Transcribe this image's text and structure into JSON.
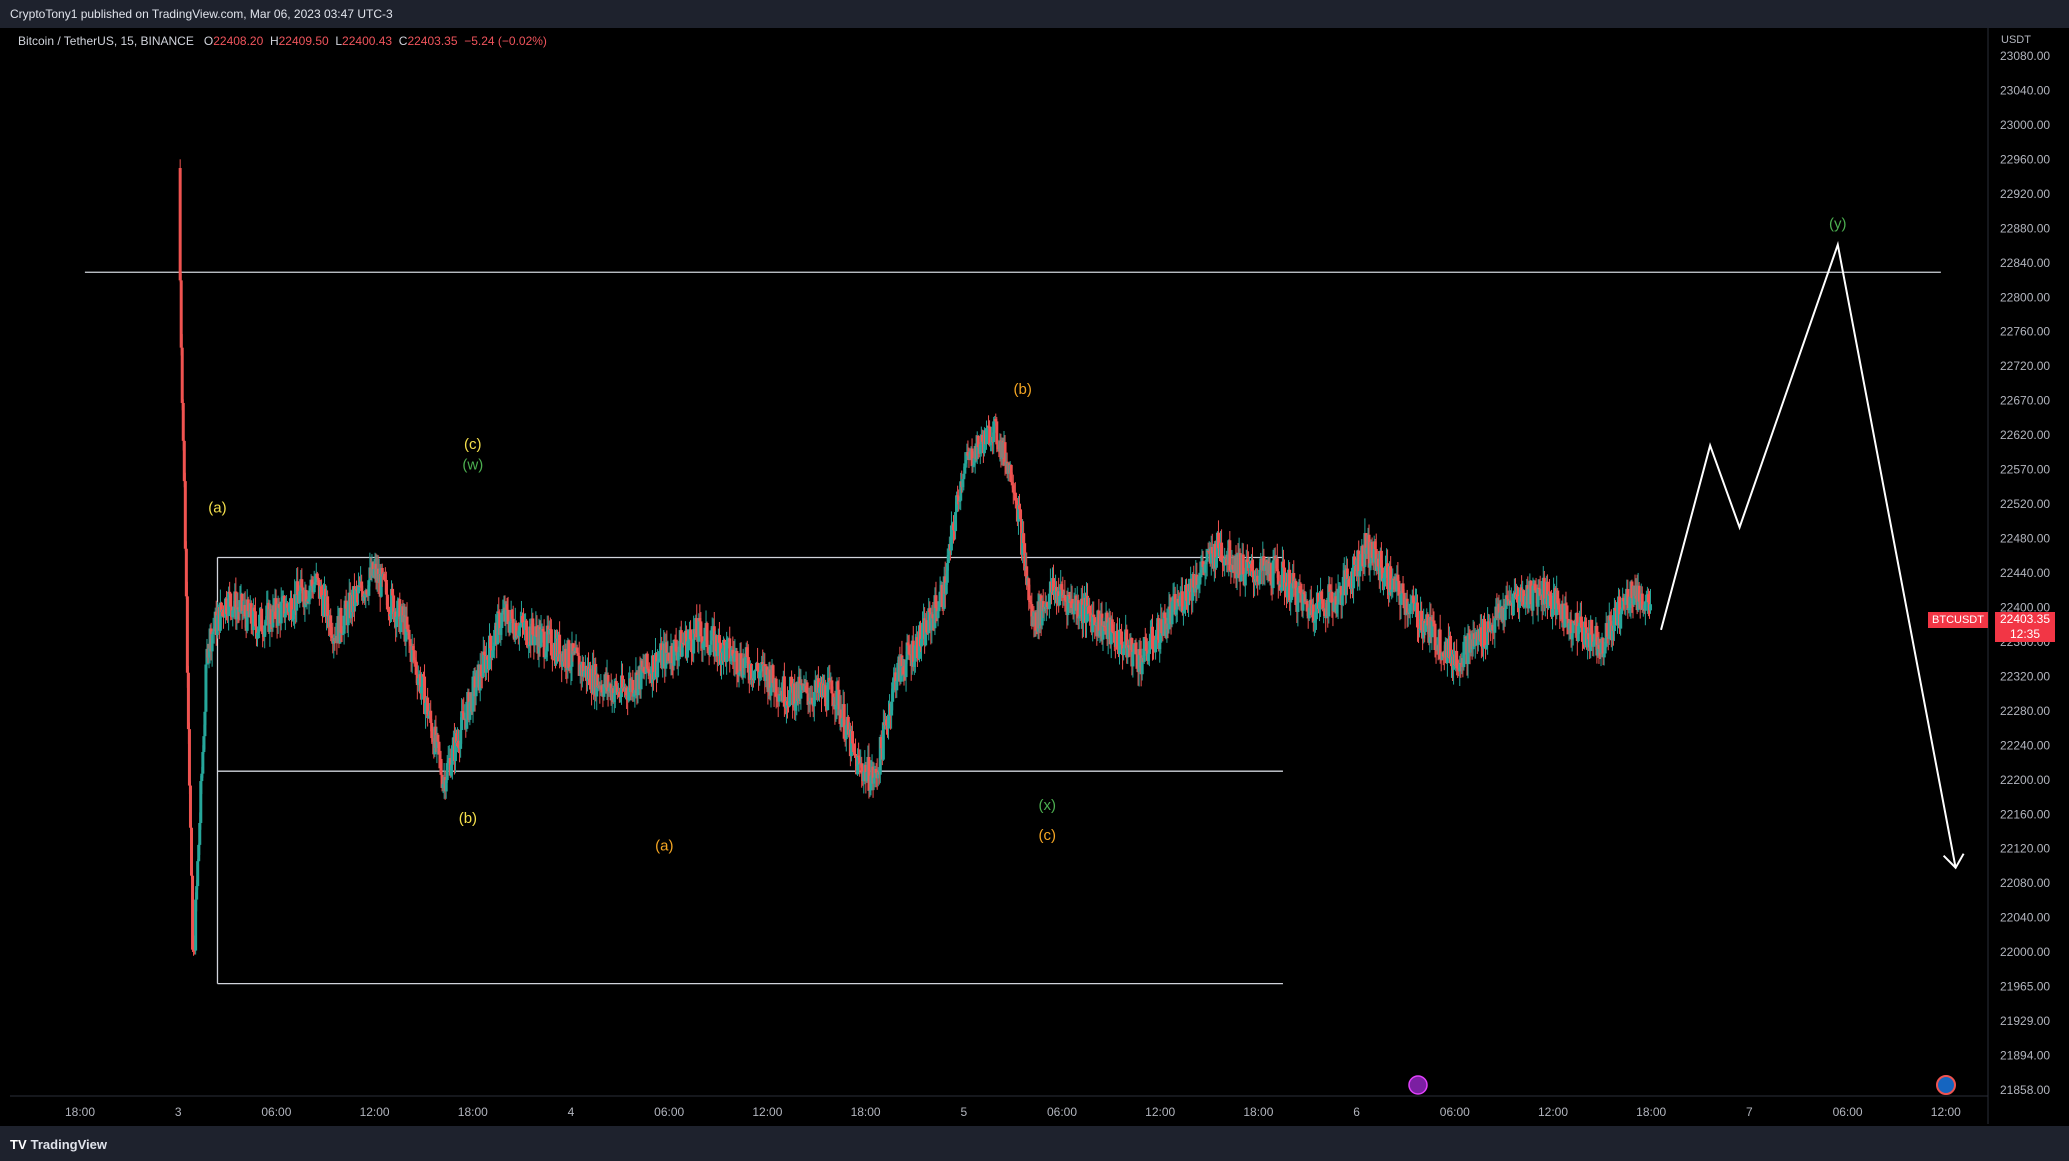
{
  "header": {
    "publisher_line": "CryptoTony1 published on TradingView.com, Mar 06, 2023 03:47 UTC-3"
  },
  "symbol": {
    "name": "Bitcoin / TetherUS, 15, BINANCE",
    "o_label": "O",
    "o": "22408.20",
    "h_label": "H",
    "h": "22409.50",
    "l_label": "L",
    "l": "22400.43",
    "c_label": "C",
    "c": "22403.35",
    "change": "−5.24 (−0.02%)"
  },
  "badges": {
    "ticker": "BTCUSDT",
    "price": "22403.35",
    "countdown": "12:35",
    "unit": "USDT"
  },
  "footer": {
    "brand": "TradingView",
    "brand_icon": "tradingview-logo-icon"
  },
  "colors": {
    "up": "#26a69a",
    "down": "#ef5350",
    "level": "#d1d4dc",
    "projection": "#ffffff",
    "wave_yellow": "#f5e04c",
    "wave_orange": "#f5a623",
    "wave_green": "#4caf50"
  },
  "chart_data": {
    "type": "candlestick",
    "symbol": "BTCUSDT",
    "interval": "15",
    "y_axis": {
      "ticks": [
        "23080.00",
        "23040.00",
        "23000.00",
        "22960.00",
        "22920.00",
        "22880.00",
        "22840.00",
        "22800.00",
        "22760.00",
        "22720.00",
        "22670.00",
        "22620.00",
        "22570.00",
        "22520.00",
        "22480.00",
        "22440.00",
        "22400.00",
        "22360.00",
        "22320.00",
        "22280.00",
        "22240.00",
        "22200.00",
        "22160.00",
        "22120.00",
        "22080.00",
        "22040.00",
        "22000.00",
        "21965.00",
        "21929.00",
        "21894.00",
        "21858.00"
      ]
    },
    "x_axis": {
      "ticks": [
        "18:00",
        "3",
        "06:00",
        "12:00",
        "18:00",
        "4",
        "06:00",
        "12:00",
        "18:00",
        "5",
        "06:00",
        "12:00",
        "18:00",
        "6",
        "06:00",
        "12:00",
        "18:00",
        "7",
        "06:00",
        "12:00"
      ]
    },
    "levels": [
      22829,
      22458,
      22210,
      21968
    ],
    "price_path": [
      [
        2,
        22950
      ],
      [
        2.15,
        21975
      ],
      [
        2.3,
        22360
      ],
      [
        2.5,
        22410
      ],
      [
        2.8,
        22380
      ],
      [
        3.1,
        22400
      ],
      [
        3.4,
        22430
      ],
      [
        3.6,
        22370
      ],
      [
        3.8,
        22410
      ],
      [
        4.0,
        22440
      ],
      [
        4.3,
        22380
      ],
      [
        4.5,
        22300
      ],
      [
        4.7,
        22200
      ],
      [
        5.0,
        22300
      ],
      [
        5.3,
        22390
      ],
      [
        5.6,
        22370
      ],
      [
        5.9,
        22350
      ],
      [
        6.2,
        22320
      ],
      [
        6.5,
        22300
      ],
      [
        6.9,
        22340
      ],
      [
        7.3,
        22370
      ],
      [
        7.7,
        22340
      ],
      [
        8.0,
        22320
      ],
      [
        8.2,
        22300
      ],
      [
        8.45,
        22300
      ],
      [
        8.7,
        22300
      ],
      [
        8.9,
        22220
      ],
      [
        9.1,
        22200
      ],
      [
        9.3,
        22320
      ],
      [
        9.6,
        22370
      ],
      [
        9.8,
        22420
      ],
      [
        10.0,
        22575
      ],
      [
        10.3,
        22630
      ],
      [
        10.5,
        22560
      ],
      [
        10.7,
        22380
      ],
      [
        10.9,
        22420
      ],
      [
        11.2,
        22400
      ],
      [
        11.5,
        22370
      ],
      [
        11.8,
        22340
      ],
      [
        12.1,
        22390
      ],
      [
        12.4,
        22440
      ],
      [
        12.6,
        22470
      ],
      [
        12.9,
        22440
      ],
      [
        13.2,
        22440
      ],
      [
        13.5,
        22400
      ],
      [
        13.8,
        22410
      ],
      [
        14.1,
        22470
      ],
      [
        14.4,
        22420
      ],
      [
        14.7,
        22380
      ],
      [
        15.0,
        22340
      ],
      [
        15.3,
        22370
      ],
      [
        15.6,
        22410
      ],
      [
        15.9,
        22420
      ],
      [
        16.2,
        22380
      ],
      [
        16.5,
        22360
      ],
      [
        16.8,
        22420
      ],
      [
        17.0,
        22400
      ]
    ],
    "projection": [
      [
        17.1,
        22374
      ],
      [
        17.6,
        22605
      ],
      [
        17.9,
        22493
      ],
      [
        18.9,
        22861
      ],
      [
        20.1,
        22098
      ]
    ],
    "wave_labels": [
      {
        "text": "(a)",
        "x": 2.4,
        "price": 22510,
        "color": "wave_yellow"
      },
      {
        "text": "(c)",
        "x": 5.0,
        "price": 22600,
        "color": "wave_yellow"
      },
      {
        "text": "(w)",
        "x": 5.0,
        "price": 22570,
        "color": "wave_green"
      },
      {
        "text": "(b)",
        "x": 4.95,
        "price": 22150,
        "color": "wave_yellow"
      },
      {
        "text": "(a)",
        "x": 6.95,
        "price": 22118,
        "color": "wave_orange"
      },
      {
        "text": "(b)",
        "x": 10.6,
        "price": 22680,
        "color": "wave_orange"
      },
      {
        "text": "(x)",
        "x": 10.85,
        "price": 22165,
        "color": "wave_green"
      },
      {
        "text": "(c)",
        "x": 10.85,
        "price": 22130,
        "color": "wave_orange"
      },
      {
        "text": "(y)",
        "x": 18.9,
        "price": 22880,
        "color": "wave_green"
      }
    ]
  }
}
